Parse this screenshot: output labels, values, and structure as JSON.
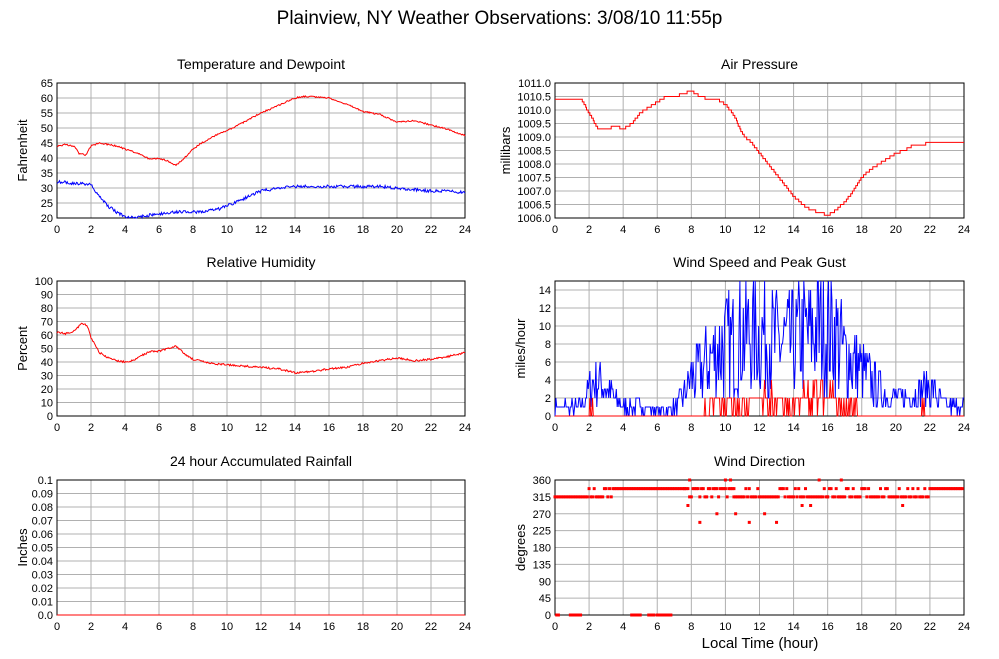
{
  "page": {
    "title": "Plainview, NY Weather Observations: 3/08/10 11:55p",
    "x_axis_title": "Local Time (hour)"
  },
  "colors": {
    "red": "#ff0000",
    "blue": "#0000ff",
    "grid": "#b0b0b0"
  },
  "chart_data": [
    {
      "id": "temp",
      "type": "line",
      "title": "Temperature and Dewpoint",
      "ylabel": "Fahrenheit",
      "xlim": [
        0,
        24
      ],
      "ylim": [
        20,
        65
      ],
      "xticks": [
        0,
        2,
        4,
        6,
        8,
        10,
        12,
        14,
        16,
        18,
        20,
        22,
        24
      ],
      "yticks": [
        20,
        25,
        30,
        35,
        40,
        45,
        50,
        55,
        60,
        65
      ],
      "ytick_labels": [
        "20",
        "25",
        "30",
        "35",
        "40",
        "45",
        "50",
        "55",
        "60",
        "65"
      ],
      "series": [
        {
          "color": "red",
          "noise": 0.25,
          "step": false,
          "x": [
            0,
            0.5,
            1,
            1.3,
            1.7,
            2,
            2.5,
            3,
            3.5,
            4,
            4.5,
            5,
            5.5,
            6,
            6.5,
            7,
            7.5,
            8,
            8.5,
            9,
            9.5,
            10,
            11,
            12,
            13,
            14,
            14.5,
            15,
            16,
            17,
            18,
            19,
            20,
            21,
            22,
            23,
            24
          ],
          "y": [
            44,
            44.5,
            44,
            41.5,
            41,
            44,
            45,
            44.5,
            44,
            43,
            42,
            41,
            39.5,
            40,
            39,
            37.5,
            40,
            43,
            45,
            46.5,
            48,
            49,
            52,
            55,
            57.5,
            60,
            60.5,
            60.5,
            60,
            58,
            55.5,
            54.5,
            52,
            52.5,
            51,
            49.5,
            47.5
          ]
        },
        {
          "color": "blue",
          "noise": 0.5,
          "step": false,
          "x": [
            0,
            0.5,
            1,
            1.5,
            2,
            2.5,
            3,
            3.5,
            4,
            4.5,
            5,
            5.5,
            6,
            6.5,
            7,
            7.5,
            8,
            8.5,
            9,
            9.5,
            10,
            11,
            12,
            13,
            14,
            15,
            16,
            17,
            18,
            19,
            20,
            21,
            22,
            23,
            24
          ],
          "y": [
            32,
            32,
            31.5,
            31.5,
            31,
            27,
            24,
            22,
            20.5,
            20,
            20.5,
            21,
            21.5,
            21.5,
            22,
            22,
            22,
            22,
            22.5,
            23,
            24,
            26.5,
            29,
            30,
            30.5,
            30.5,
            30.5,
            30.5,
            30.5,
            30.5,
            30,
            29.5,
            29,
            29,
            28.5
          ]
        }
      ]
    },
    {
      "id": "pressure",
      "type": "line",
      "title": "Air Pressure",
      "ylabel": "millibars",
      "xlim": [
        0,
        24
      ],
      "ylim": [
        1006.0,
        1011.0
      ],
      "xticks": [
        0,
        2,
        4,
        6,
        8,
        10,
        12,
        14,
        16,
        18,
        20,
        22,
        24
      ],
      "yticks": [
        1006.0,
        1006.5,
        1007.0,
        1007.5,
        1008.0,
        1008.5,
        1009.0,
        1009.5,
        1010.0,
        1010.5,
        1011.0
      ],
      "ytick_labels": [
        "1006.0",
        "1006.5",
        "1007.0",
        "1007.5",
        "1008.0",
        "1008.5",
        "1009.0",
        "1009.5",
        "1010.0",
        "1010.5",
        "1011.0"
      ],
      "series": [
        {
          "color": "red",
          "noise": 0,
          "step": true,
          "quantum": 0.1,
          "x": [
            0,
            0.5,
            1,
            1.5,
            2,
            2.5,
            3,
            3.5,
            4,
            4.5,
            5,
            5.5,
            6,
            6.5,
            7,
            7.5,
            8,
            8.5,
            9,
            9.5,
            10,
            10.5,
            11,
            11.5,
            12,
            12.5,
            13,
            13.5,
            14,
            14.5,
            15,
            15.5,
            16,
            16.5,
            17,
            17.5,
            18,
            18.5,
            19,
            19.5,
            20,
            20.5,
            21,
            21.5,
            22,
            22.5,
            23,
            23.5,
            24
          ],
          "y": [
            1010.4,
            1010.4,
            1010.4,
            1010.4,
            1009.9,
            1009.3,
            1009.3,
            1009.4,
            1009.3,
            1009.5,
            1009.9,
            1010.1,
            1010.3,
            1010.5,
            1010.5,
            1010.6,
            1010.7,
            1010.5,
            1010.4,
            1010.4,
            1010.2,
            1009.8,
            1009.1,
            1008.8,
            1008.4,
            1008.0,
            1007.6,
            1007.2,
            1006.8,
            1006.5,
            1006.3,
            1006.2,
            1006.1,
            1006.3,
            1006.6,
            1007.0,
            1007.5,
            1007.8,
            1008.0,
            1008.2,
            1008.4,
            1008.5,
            1008.7,
            1008.7,
            1008.8,
            1008.8,
            1008.8,
            1008.8,
            1008.8
          ]
        }
      ]
    },
    {
      "id": "humidity",
      "type": "line",
      "title": "Relative Humidity",
      "ylabel": "Percent",
      "xlim": [
        0,
        24
      ],
      "ylim": [
        0,
        100
      ],
      "xticks": [
        0,
        2,
        4,
        6,
        8,
        10,
        12,
        14,
        16,
        18,
        20,
        22,
        24
      ],
      "yticks": [
        0,
        10,
        20,
        30,
        40,
        50,
        60,
        70,
        80,
        90,
        100
      ],
      "ytick_labels": [
        "0",
        "10",
        "20",
        "30",
        "40",
        "50",
        "60",
        "70",
        "80",
        "90",
        "100"
      ],
      "series": [
        {
          "color": "red",
          "noise": 0.7,
          "step": false,
          "x": [
            0,
            0.5,
            1,
            1.5,
            1.8,
            2,
            2.5,
            3,
            3.5,
            4,
            4.5,
            5,
            5.5,
            6,
            6.5,
            7,
            7.5,
            8,
            9,
            10,
            11,
            12,
            13,
            14,
            15,
            16,
            17,
            18,
            19,
            20,
            21,
            22,
            23,
            24
          ],
          "y": [
            62,
            61,
            63,
            69,
            66,
            58,
            47,
            43,
            41,
            40,
            41,
            45,
            48,
            48,
            50,
            52,
            46,
            42,
            39,
            38,
            37,
            36,
            35,
            32,
            33,
            35,
            36,
            39,
            41,
            43,
            41,
            42,
            44,
            47
          ]
        }
      ]
    },
    {
      "id": "wind",
      "type": "line",
      "title": "Wind Speed and Peak Gust",
      "ylabel": "miles/hour",
      "xlim": [
        0,
        24
      ],
      "ylim": [
        0,
        15
      ],
      "xticks": [
        0,
        2,
        4,
        6,
        8,
        10,
        12,
        14,
        16,
        18,
        20,
        22,
        24
      ],
      "yticks": [
        0,
        2,
        4,
        6,
        8,
        10,
        12,
        14
      ],
      "ytick_labels": [
        "0",
        "2",
        "4",
        "6",
        "8",
        "10",
        "12",
        "14"
      ],
      "series": [
        {
          "color": "blue",
          "noise": 0,
          "step": false,
          "spiky": true,
          "seed": 7,
          "x": [
            0,
            0.5,
            1,
            1.5,
            2,
            2.5,
            3,
            3.5,
            4,
            4.5,
            5,
            5.5,
            6,
            6.5,
            7,
            7.5,
            8,
            8.5,
            9,
            9.5,
            10,
            10.5,
            11,
            11.5,
            12,
            12.5,
            13,
            13.5,
            14,
            14.5,
            15,
            15.5,
            16,
            16.5,
            17,
            17.5,
            18,
            18.5,
            19,
            19.5,
            20,
            20.5,
            21,
            21.5,
            22,
            22.5,
            23,
            23.5,
            24
          ],
          "y": [
            1,
            1,
            1,
            1,
            3,
            4,
            3,
            2,
            1,
            1,
            1,
            1,
            0.5,
            0.5,
            1,
            2,
            4,
            5,
            6,
            7,
            8,
            8,
            9,
            9,
            9,
            9,
            8,
            8,
            8,
            9,
            9,
            10,
            10,
            9,
            7,
            6,
            5,
            4,
            3,
            2,
            2,
            2,
            2,
            3,
            3,
            2,
            1,
            1,
            1
          ]
        },
        {
          "color": "red",
          "noise": 0,
          "step": false,
          "spiky": true,
          "seed": 3,
          "x": [
            0,
            1,
            2,
            3,
            4,
            5,
            6,
            7,
            8,
            9,
            10,
            11,
            12,
            13,
            14,
            15,
            16,
            17,
            18,
            19,
            20,
            21,
            22,
            23,
            24
          ],
          "y": [
            0,
            0,
            0.5,
            0.5,
            0,
            0,
            0,
            0,
            0,
            1,
            1,
            1,
            1.5,
            1.5,
            1,
            2,
            2,
            1,
            0.5,
            0,
            0,
            0.5,
            0.5,
            0,
            0
          ]
        }
      ]
    },
    {
      "id": "rain",
      "type": "line",
      "title": "24 hour Accumulated Rainfall",
      "ylabel": "Inches",
      "xlim": [
        0,
        24
      ],
      "ylim": [
        0,
        0.1
      ],
      "xticks": [
        0,
        2,
        4,
        6,
        8,
        10,
        12,
        14,
        16,
        18,
        20,
        22,
        24
      ],
      "yticks": [
        0,
        0.01,
        0.02,
        0.03,
        0.04,
        0.05,
        0.06,
        0.07,
        0.08,
        0.09,
        0.1
      ],
      "ytick_labels": [
        "0.0",
        "0.01",
        "0.02",
        "0.03",
        "0.04",
        "0.05",
        "0.06",
        "0.07",
        "0.08",
        "0.09",
        "0.1"
      ],
      "series": [
        {
          "color": "red",
          "noise": 0,
          "step": false,
          "x": [
            0,
            24
          ],
          "y": [
            0,
            0
          ]
        }
      ]
    },
    {
      "id": "direction",
      "type": "scatter",
      "title": "Wind Direction",
      "ylabel": "degrees",
      "xlim": [
        0,
        24
      ],
      "ylim": [
        0,
        360
      ],
      "xticks": [
        0,
        2,
        4,
        6,
        8,
        10,
        12,
        14,
        16,
        18,
        20,
        22,
        24
      ],
      "yticks": [
        0,
        45,
        90,
        135,
        180,
        225,
        270,
        315,
        360
      ],
      "ytick_labels": [
        "0",
        "45",
        "90",
        "135",
        "180",
        "225",
        "270",
        "315",
        "360"
      ],
      "series": [
        {
          "color": "red",
          "segments": [
            {
              "from": 0.0,
              "to": 2.0,
              "y": 315
            },
            {
              "from": 2.0,
              "to": 3.4,
              "y": 315,
              "alt": 337
            },
            {
              "from": 3.4,
              "to": 7.6,
              "y": 337
            },
            {
              "from": 7.6,
              "to": 10.5,
              "y": 337,
              "alt": 315
            },
            {
              "from": 10.5,
              "to": 16.0,
              "y": 315,
              "alt": 337
            },
            {
              "from": 16.0,
              "to": 22.0,
              "y": 315,
              "alt": 337
            },
            {
              "from": 22.0,
              "to": 24.0,
              "y": 337
            },
            {
              "from": 0.1,
              "to": 0.3,
              "y": 0
            },
            {
              "from": 0.9,
              "to": 1.6,
              "y": 0
            },
            {
              "from": 4.5,
              "to": 5.0,
              "y": 0
            },
            {
              "from": 5.5,
              "to": 5.8,
              "y": 0
            },
            {
              "from": 6.0,
              "to": 6.8,
              "y": 0
            }
          ],
          "outliers": [
            {
              "x": 7.8,
              "y": 292
            },
            {
              "x": 7.9,
              "y": 360
            },
            {
              "x": 8.5,
              "y": 247
            },
            {
              "x": 9.5,
              "y": 270
            },
            {
              "x": 10.0,
              "y": 360
            },
            {
              "x": 10.3,
              "y": 360
            },
            {
              "x": 10.6,
              "y": 270
            },
            {
              "x": 11.4,
              "y": 247
            },
            {
              "x": 12.3,
              "y": 270
            },
            {
              "x": 13.0,
              "y": 247
            },
            {
              "x": 14.5,
              "y": 292
            },
            {
              "x": 15.5,
              "y": 360
            },
            {
              "x": 15.0,
              "y": 292
            },
            {
              "x": 16.8,
              "y": 360
            },
            {
              "x": 20.4,
              "y": 292
            }
          ]
        }
      ]
    }
  ]
}
